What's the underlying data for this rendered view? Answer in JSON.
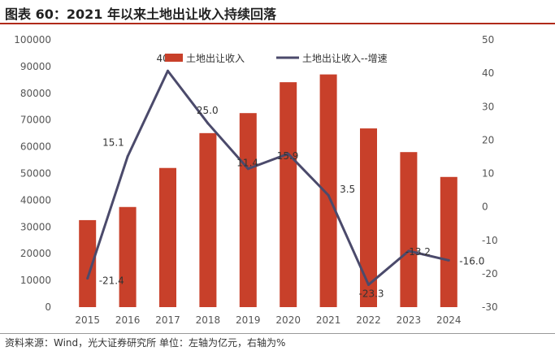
{
  "figure": {
    "title": "图表 60：2021 年以来土地出让收入持续回落",
    "source": "资料来源：Wind，光大证券研究所 单位：左轴为亿元，右轴为%"
  },
  "colors": {
    "bar": "#C8402A",
    "line": "#4B4A6B",
    "rule": "#B02A1A"
  },
  "chart_data": {
    "type": "bar",
    "categories": [
      "2015",
      "2016",
      "2017",
      "2018",
      "2019",
      "2020",
      "2021",
      "2022",
      "2023",
      "2024"
    ],
    "series": [
      {
        "name": "土地出让收入",
        "type": "bar",
        "axis": "left",
        "values": [
          32547,
          37457,
          52059,
          65096,
          72584,
          84142,
          87051,
          66854,
          57996,
          48699
        ]
      },
      {
        "name": "土地出让收入--增速",
        "type": "line",
        "axis": "right",
        "values": [
          -21.4,
          15.1,
          40.7,
          25.0,
          11.4,
          15.9,
          3.5,
          -23.3,
          -13.2,
          -16.0
        ],
        "labels": [
          "-21.4",
          "15.1",
          "40.7",
          "25.0",
          "11.4",
          "15.9",
          "3.5",
          "-23.3",
          "-13.2",
          "-16.0"
        ]
      }
    ],
    "left_axis": {
      "range": [
        0,
        100000
      ],
      "ticks": [
        "0",
        "10000",
        "20000",
        "30000",
        "40000",
        "50000",
        "60000",
        "70000",
        "80000",
        "90000",
        "100000"
      ]
    },
    "right_axis": {
      "range": [
        -30,
        50
      ],
      "ticks": [
        "-30",
        "-20",
        "-10",
        "0",
        "10",
        "20",
        "30",
        "40",
        "50"
      ]
    },
    "grid": false,
    "legend": "top-center"
  }
}
